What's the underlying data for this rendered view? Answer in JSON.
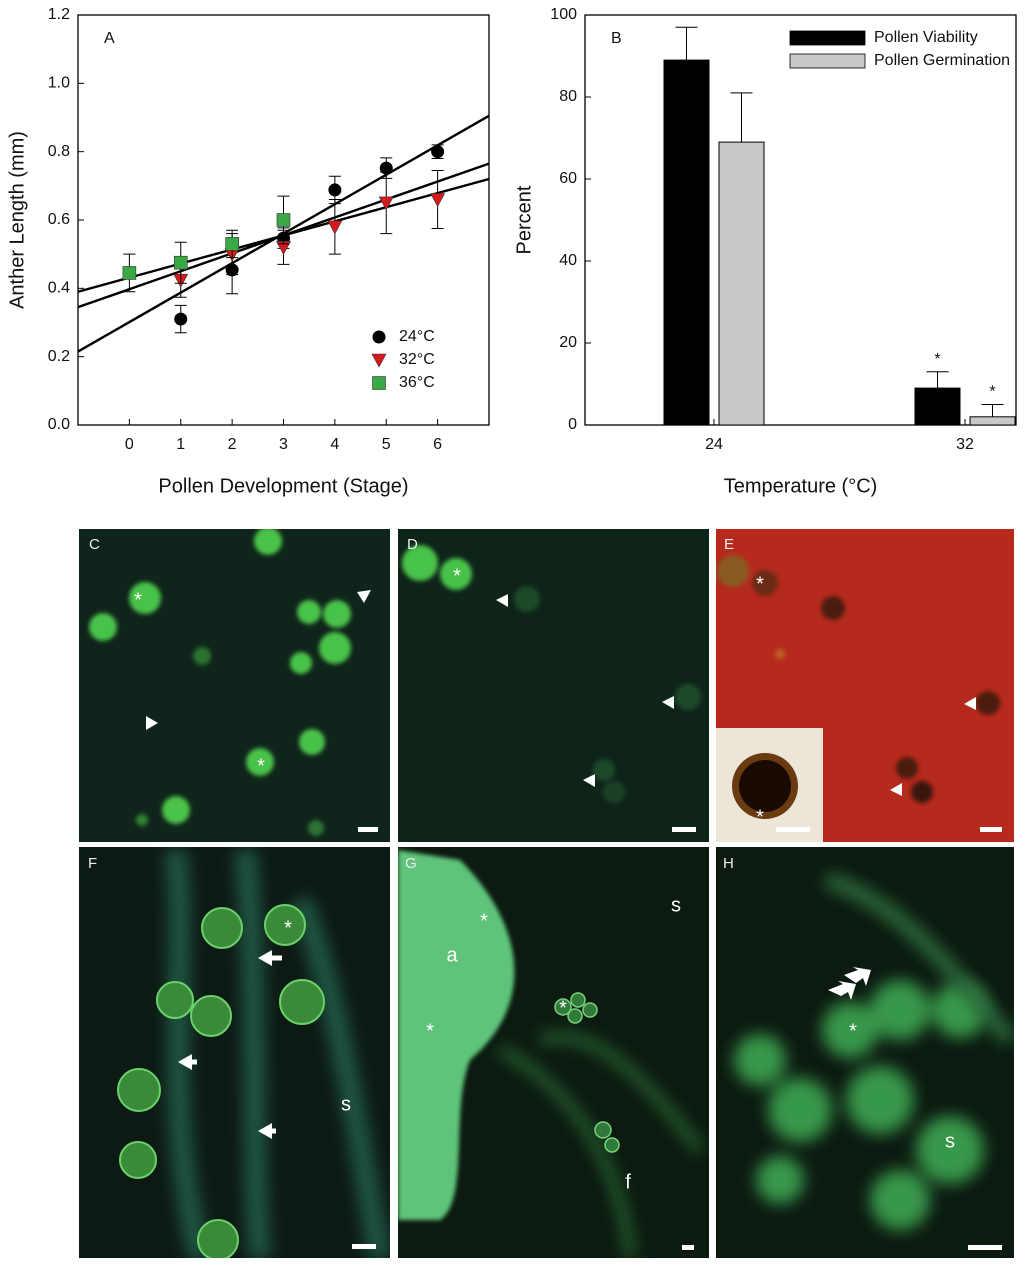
{
  "chart_data": [
    {
      "type": "scatter",
      "panel_label": "A",
      "x_label": "Pollen Development (Stage)",
      "y_label": "Anther Length (mm)",
      "xlim": [
        -1,
        7
      ],
      "xticks": [
        0,
        1,
        2,
        3,
        4,
        5,
        6
      ],
      "ylim": [
        0,
        1.2
      ],
      "yticks": [
        {
          "value": 0,
          "label": "0.0"
        },
        0.2,
        0.4,
        0.6,
        0.8,
        {
          "value": 1,
          "label": "1.0"
        },
        1.2
      ],
      "legend": "lower right",
      "series": [
        {
          "name": "24°C",
          "color": "#000000",
          "marker": "circle",
          "x": [
            1,
            2,
            3,
            4,
            5,
            6
          ],
          "values": [
            0.31,
            0.454,
            0.547,
            0.688,
            0.752,
            0.8
          ],
          "errors": [
            0.04,
            0.07,
            0.03,
            0.04,
            0.03,
            0.02
          ]
        },
        {
          "name": "32°C",
          "color": "#d7191c",
          "marker": "triangle",
          "x": [
            1,
            2,
            3,
            4,
            5,
            6
          ],
          "values": [
            0.424,
            0.5,
            0.52,
            0.58,
            0.65,
            0.66
          ],
          "errors": [
            0.05,
            0.06,
            0.05,
            0.08,
            0.09,
            0.085
          ]
        },
        {
          "name": "36°C",
          "color": "#3aa845",
          "marker": "square",
          "x": [
            0,
            1,
            2,
            3
          ],
          "values": [
            0.445,
            0.475,
            0.53,
            0.6
          ],
          "errors": [
            0.055,
            0.06,
            0.04,
            0.07
          ]
        }
      ],
      "fit_lines": [
        {
          "x": [
            -1,
            7
          ],
          "values": [
            0.215,
            0.905
          ]
        },
        {
          "x": [
            -1,
            7
          ],
          "values": [
            0.345,
            0.765
          ]
        },
        {
          "x": [
            -1,
            7
          ],
          "values": [
            0.39,
            0.72
          ]
        }
      ]
    },
    {
      "type": "bar",
      "panel_label": "B",
      "x_label": "Temperature (°C)",
      "y_label": "Percent",
      "categories": [
        "24",
        "32"
      ],
      "ylim": [
        0,
        100
      ],
      "yticks": [
        0,
        20,
        40,
        60,
        80,
        100
      ],
      "legend": "upper right",
      "series": [
        {
          "name": "Pollen Viability",
          "color": "#000000",
          "values": [
            89,
            9
          ],
          "errors": [
            8,
            4
          ],
          "significance": [
            null,
            "*"
          ]
        },
        {
          "name": "Pollen Germination",
          "color": "#c8c8c8",
          "values": [
            69,
            2
          ],
          "errors": [
            12,
            3
          ],
          "significance": [
            null,
            "*"
          ]
        }
      ]
    }
  ],
  "panels": [
    {
      "label": "C",
      "texts": [
        "*",
        "*"
      ]
    },
    {
      "label": "D",
      "texts": [
        "*"
      ]
    },
    {
      "label": "E",
      "texts": [
        "*",
        "*"
      ]
    },
    {
      "label": "F",
      "texts": [
        "*",
        "s"
      ]
    },
    {
      "label": "G",
      "texts": [
        "*",
        "a",
        "*",
        "*",
        "s",
        "f"
      ]
    },
    {
      "label": "H",
      "texts": [
        "*",
        "s"
      ]
    }
  ]
}
